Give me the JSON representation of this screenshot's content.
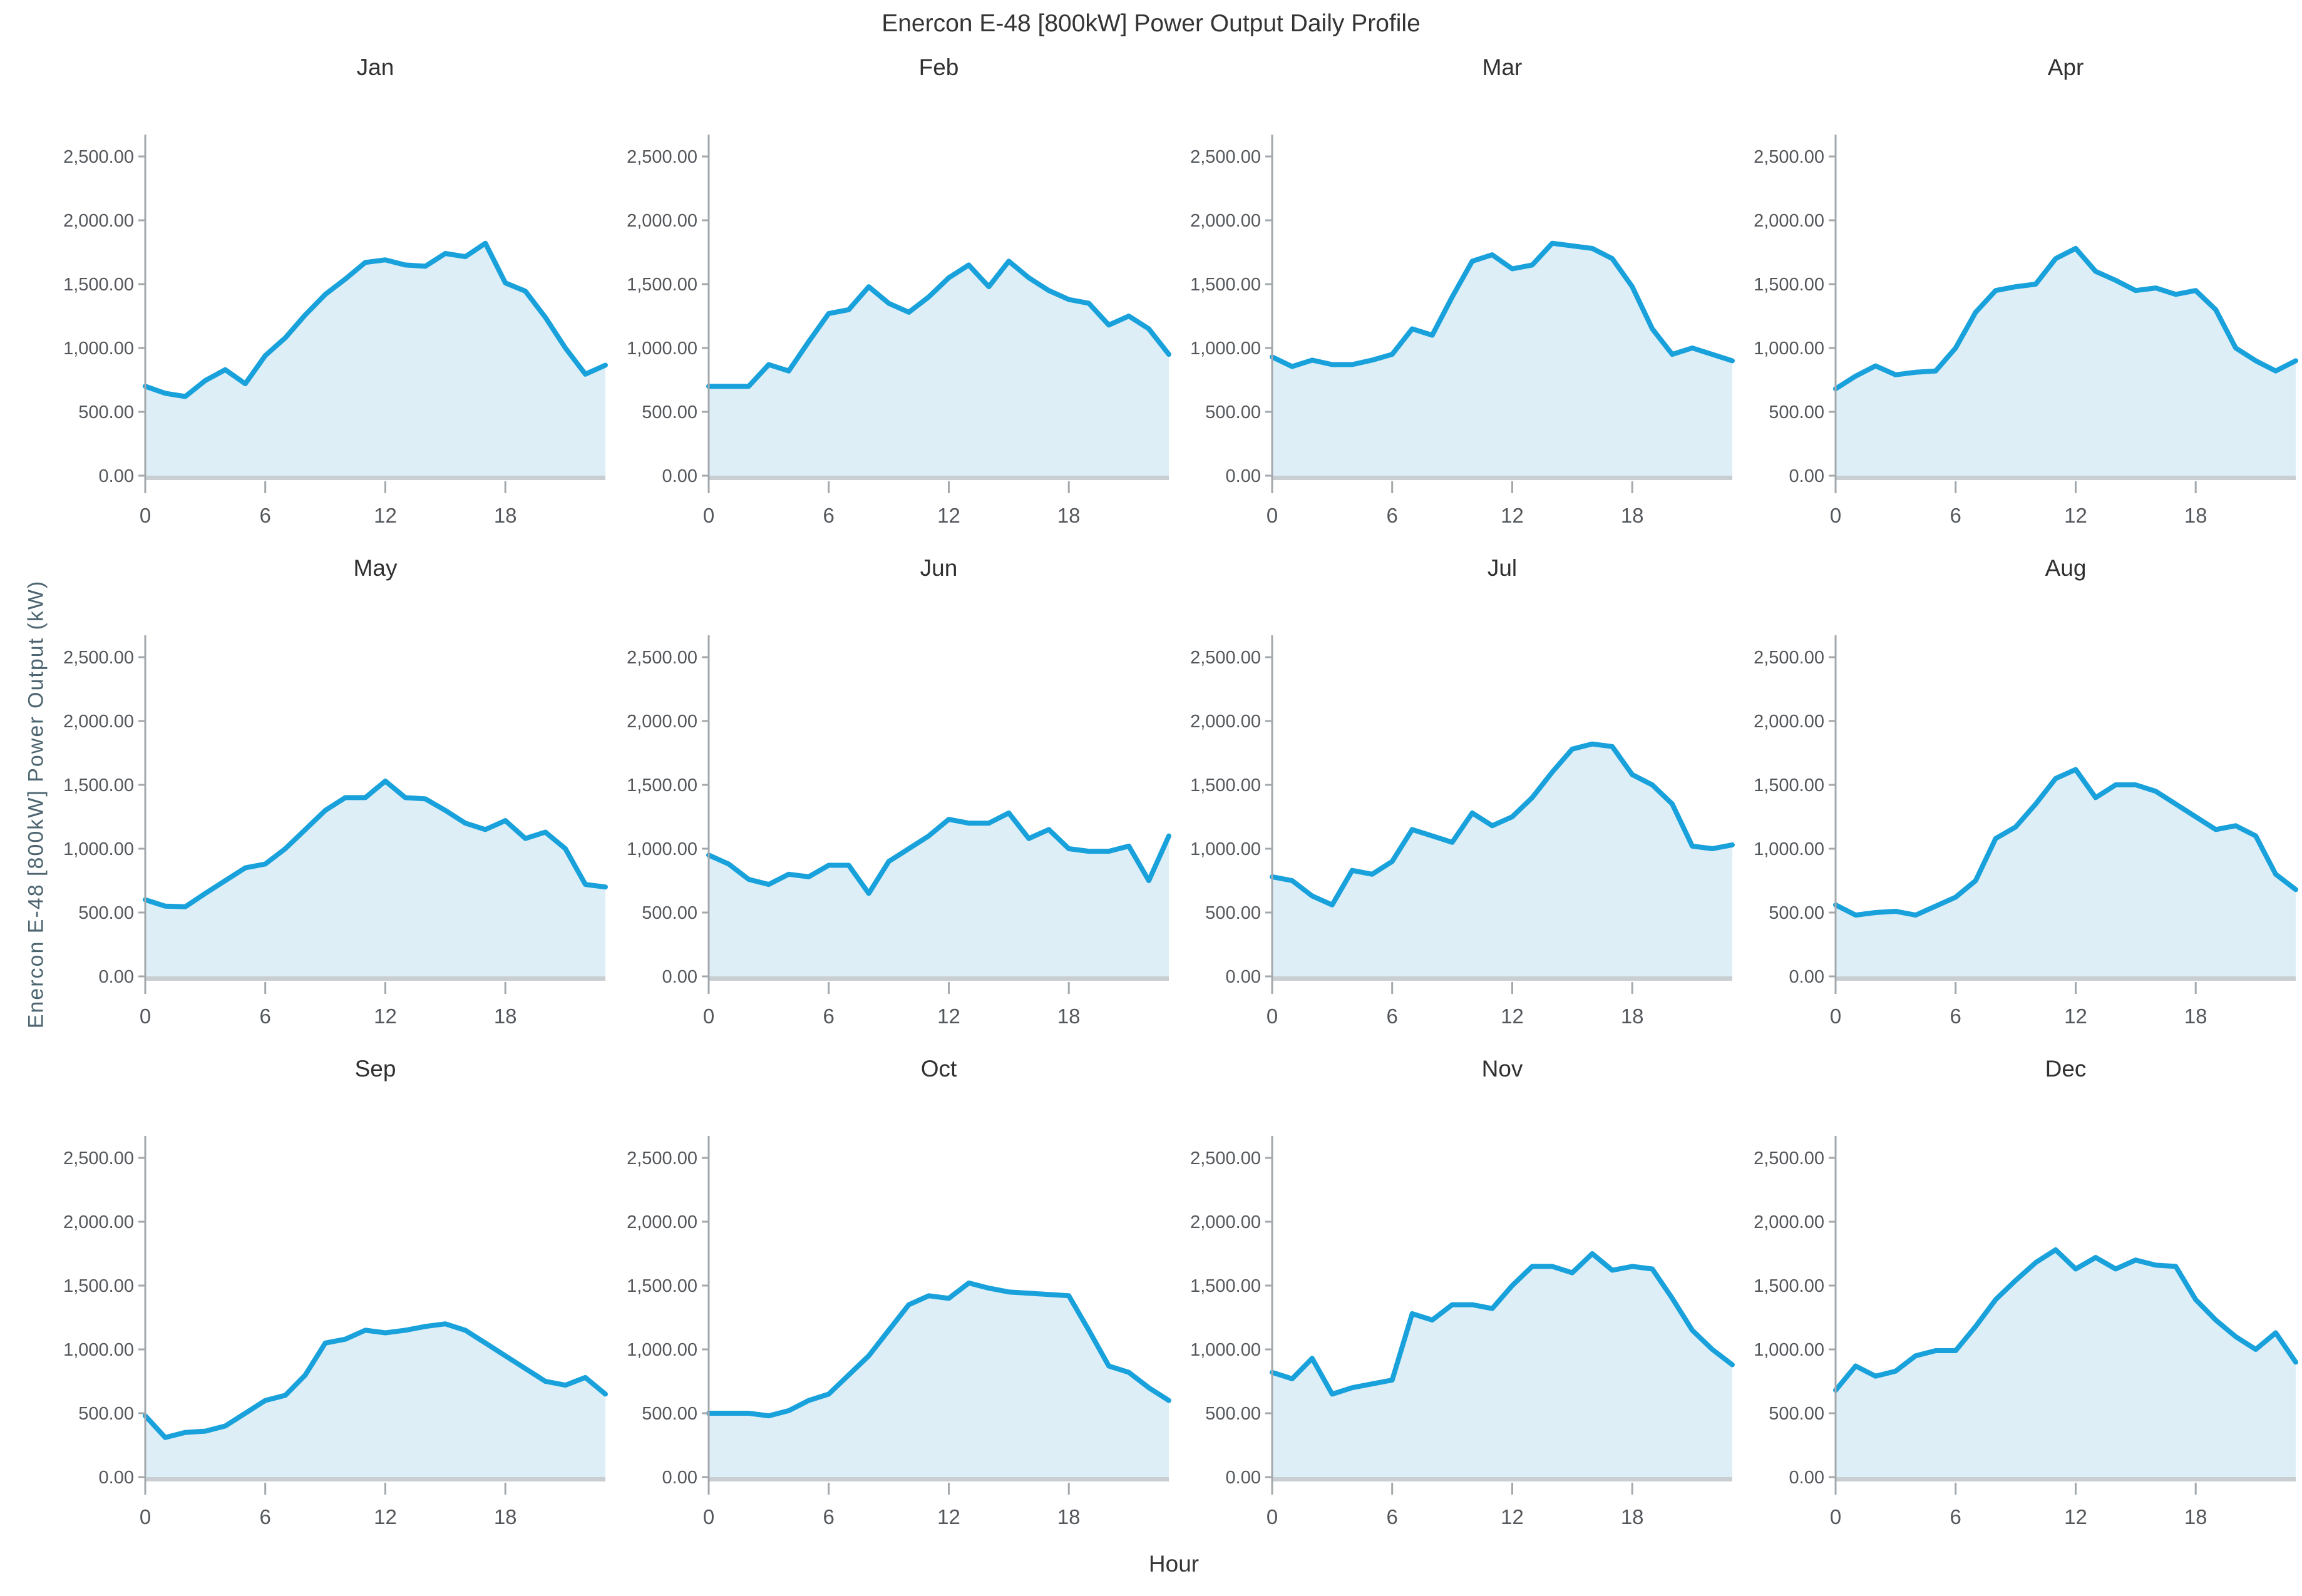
{
  "page": {
    "title": "Enercon E-48 [800kW] Power Output Daily Profile",
    "ylabel": "Enercon E-48 [800kW] Power Output (kW)",
    "xlabel": "Hour"
  },
  "chart_data": {
    "type": "area",
    "title": "Enercon E-48 [800kW] Power Output Daily Profile",
    "xlabel": "Hour",
    "ylabel": "Enercon E-48 [800kW] Power Output (kW)",
    "layout": {
      "rows": 3,
      "cols": 4,
      "grid": "off",
      "legend": "none"
    },
    "x": [
      0,
      1,
      2,
      3,
      4,
      5,
      6,
      7,
      8,
      9,
      10,
      11,
      12,
      13,
      14,
      15,
      16,
      17,
      18,
      19,
      20,
      21,
      22,
      23
    ],
    "x_ticks": [
      0,
      6,
      12,
      18
    ],
    "y_ticks": [
      "0.00",
      "500.00",
      "1,000.00",
      "1,500.00",
      "2,000.00",
      "2,500.00"
    ],
    "y_tick_values": [
      0,
      500,
      1000,
      1500,
      2000,
      2500
    ],
    "ylim": [
      0,
      2500
    ],
    "colors": {
      "line": "#18a1db",
      "fill": "#ddeef7",
      "baseline_band": "#c9ced2",
      "axis": "#a3a8ac",
      "tick_text": "#53575b",
      "title_text": "#353535"
    },
    "series": [
      {
        "name": "Jan",
        "values": [
          700,
          645,
          620,
          745,
          830,
          720,
          940,
          1080,
          1260,
          1420,
          1540,
          1670,
          1690,
          1650,
          1640,
          1740,
          1715,
          1820,
          1510,
          1445,
          1240,
          1000,
          795,
          865
        ]
      },
      {
        "name": "Feb",
        "values": [
          700,
          700,
          700,
          870,
          820,
          1050,
          1270,
          1300,
          1480,
          1350,
          1280,
          1400,
          1550,
          1650,
          1480,
          1680,
          1550,
          1450,
          1380,
          1350,
          1180,
          1250,
          1150,
          950
        ]
      },
      {
        "name": "Mar",
        "values": [
          930,
          855,
          905,
          870,
          870,
          905,
          950,
          1150,
          1100,
          1400,
          1680,
          1730,
          1620,
          1650,
          1820,
          1800,
          1780,
          1700,
          1480,
          1150,
          950,
          1000,
          950,
          900
        ]
      },
      {
        "name": "Apr",
        "values": [
          680,
          780,
          860,
          790,
          810,
          820,
          1000,
          1280,
          1450,
          1480,
          1500,
          1700,
          1780,
          1600,
          1530,
          1450,
          1470,
          1420,
          1450,
          1300,
          1000,
          900,
          820,
          900
        ]
      },
      {
        "name": "May",
        "values": [
          600,
          550,
          545,
          650,
          750,
          850,
          880,
          1000,
          1150,
          1300,
          1400,
          1400,
          1530,
          1400,
          1390,
          1300,
          1200,
          1150,
          1220,
          1080,
          1130,
          1000,
          720,
          700
        ]
      },
      {
        "name": "Jun",
        "values": [
          950,
          880,
          760,
          720,
          800,
          780,
          870,
          870,
          650,
          900,
          1000,
          1100,
          1230,
          1200,
          1200,
          1280,
          1080,
          1150,
          1000,
          980,
          980,
          1020,
          750,
          1100
        ]
      },
      {
        "name": "Jul",
        "values": [
          780,
          750,
          630,
          560,
          830,
          800,
          900,
          1150,
          1100,
          1050,
          1280,
          1180,
          1250,
          1400,
          1600,
          1780,
          1820,
          1800,
          1580,
          1500,
          1350,
          1020,
          1000,
          1030
        ]
      },
      {
        "name": "Aug",
        "values": [
          560,
          480,
          500,
          510,
          480,
          550,
          620,
          750,
          1080,
          1170,
          1350,
          1550,
          1620,
          1400,
          1500,
          1500,
          1450,
          1350,
          1250,
          1150,
          1180,
          1100,
          800,
          680
        ]
      },
      {
        "name": "Sep",
        "values": [
          480,
          310,
          350,
          360,
          400,
          500,
          600,
          640,
          800,
          1050,
          1080,
          1150,
          1130,
          1150,
          1180,
          1200,
          1150,
          1050,
          950,
          850,
          750,
          720,
          780,
          650
        ]
      },
      {
        "name": "Oct",
        "values": [
          500,
          500,
          500,
          480,
          520,
          600,
          650,
          800,
          950,
          1150,
          1350,
          1420,
          1400,
          1520,
          1480,
          1450,
          1440,
          1430,
          1420,
          1150,
          870,
          820,
          700,
          600
        ]
      },
      {
        "name": "Nov",
        "values": [
          820,
          770,
          930,
          650,
          700,
          730,
          760,
          1280,
          1230,
          1350,
          1350,
          1320,
          1500,
          1650,
          1650,
          1600,
          1750,
          1620,
          1650,
          1630,
          1400,
          1150,
          1000,
          880
        ]
      },
      {
        "name": "Dec",
        "values": [
          680,
          870,
          790,
          830,
          950,
          990,
          990,
          1180,
          1390,
          1540,
          1680,
          1780,
          1630,
          1720,
          1630,
          1700,
          1660,
          1650,
          1390,
          1230,
          1100,
          1000,
          1130,
          900
        ]
      }
    ]
  }
}
